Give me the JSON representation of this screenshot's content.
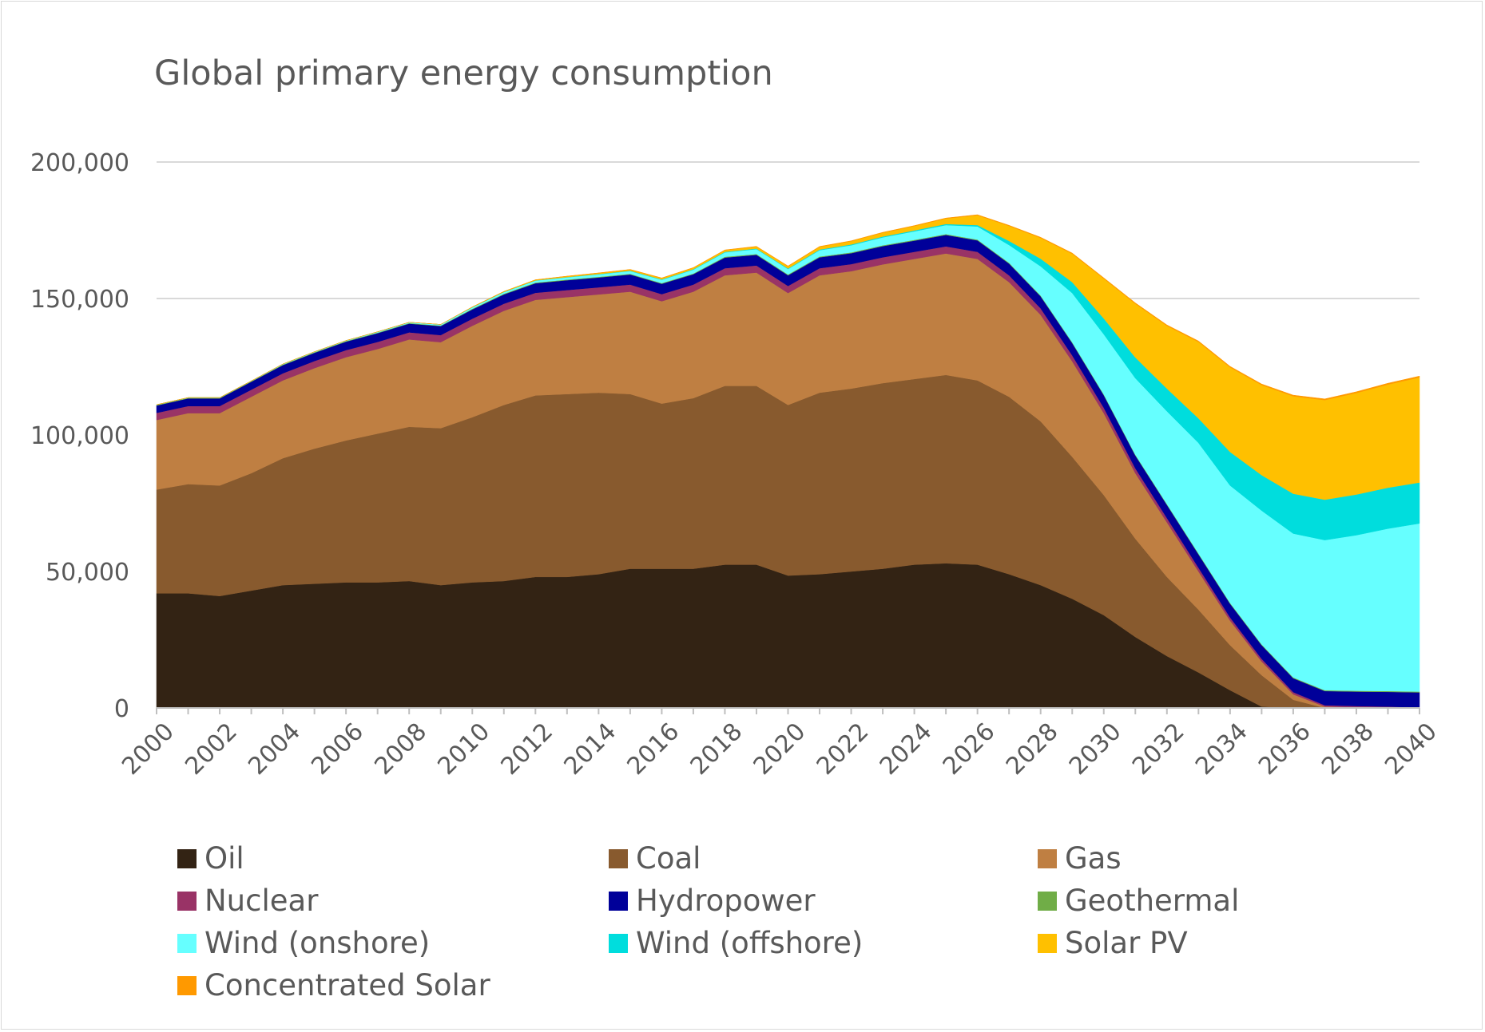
{
  "chart_data": {
    "type": "area",
    "stacked": true,
    "title": "Global primary energy consumption",
    "xlabel": "",
    "ylabel": "",
    "ylim": [
      0,
      200000
    ],
    "yticks": [
      "0",
      "50,000",
      "100,000",
      "150,000",
      "200,000"
    ],
    "ytick_values": [
      0,
      50000,
      100000,
      150000,
      200000
    ],
    "grid": true,
    "legend_position": "bottom",
    "x": [
      2000,
      2001,
      2002,
      2003,
      2004,
      2005,
      2006,
      2007,
      2008,
      2009,
      2010,
      2011,
      2012,
      2013,
      2014,
      2015,
      2016,
      2017,
      2018,
      2019,
      2020,
      2021,
      2022,
      2023,
      2024,
      2025,
      2026,
      2027,
      2028,
      2029,
      2030,
      2031,
      2032,
      2033,
      2034,
      2035,
      2036,
      2037,
      2038,
      2039,
      2040
    ],
    "xtick_labels": [
      "2000",
      "2002",
      "2004",
      "2006",
      "2008",
      "2010",
      "2012",
      "2014",
      "2016",
      "2018",
      "2020",
      "2022",
      "2024",
      "2026",
      "2028",
      "2030",
      "2032",
      "2034",
      "2036",
      "2038",
      "2040"
    ],
    "series": [
      {
        "name": "Oil",
        "color": "#332314",
        "values": [
          42000,
          42000,
          41000,
          43000,
          45000,
          45500,
          46000,
          46000,
          46500,
          45000,
          46000,
          46500,
          48000,
          48000,
          49000,
          51000,
          51000,
          51000,
          52500,
          52500,
          48500,
          49000,
          50000,
          51000,
          52500,
          53000,
          52500,
          49000,
          45000,
          40000,
          34000,
          26000,
          19000,
          13000,
          6500,
          500,
          0,
          0,
          0,
          0,
          0
        ]
      },
      {
        "name": "Coal",
        "color": "#885A2E",
        "values": [
          38000,
          40000,
          40500,
          43000,
          46500,
          49500,
          52000,
          54500,
          56500,
          57500,
          60500,
          64500,
          66500,
          67000,
          66500,
          64000,
          60500,
          62500,
          65500,
          65500,
          62500,
          66500,
          67000,
          68000,
          68000,
          69000,
          67500,
          65000,
          60000,
          52000,
          44000,
          36000,
          29000,
          23000,
          16500,
          11500,
          3000,
          0,
          0,
          0,
          0
        ]
      },
      {
        "name": "Gas",
        "color": "#BF7F42",
        "values": [
          25500,
          26000,
          26500,
          28000,
          28500,
          29500,
          30500,
          31000,
          32000,
          31500,
          33500,
          34500,
          35000,
          35500,
          36000,
          37500,
          37500,
          39000,
          40500,
          41500,
          41000,
          43000,
          43000,
          43500,
          44000,
          44500,
          44500,
          42000,
          39000,
          35000,
          30000,
          24000,
          20000,
          14000,
          9000,
          5000,
          2000,
          500,
          300,
          200,
          0
        ]
      },
      {
        "name": "Nuclear",
        "color": "#993366",
        "values": [
          2600,
          2600,
          2600,
          2600,
          2600,
          2600,
          2600,
          2600,
          2600,
          2600,
          2600,
          2600,
          2600,
          2600,
          2600,
          2600,
          2600,
          2600,
          2600,
          2600,
          2600,
          2600,
          2600,
          2600,
          2600,
          2600,
          2600,
          2500,
          2400,
          2200,
          2000,
          1800,
          1600,
          1400,
          1200,
          1000,
          800,
          500,
          400,
          300,
          200
        ]
      },
      {
        "name": "Hydropower",
        "color": "#000099",
        "values": [
          2700,
          2800,
          2800,
          2900,
          3000,
          3000,
          3100,
          3200,
          3200,
          3300,
          3400,
          3400,
          3500,
          3600,
          3600,
          3700,
          3800,
          3800,
          3900,
          3900,
          3900,
          4000,
          4000,
          4100,
          4100,
          4200,
          4200,
          4300,
          4400,
          4500,
          4600,
          4700,
          4800,
          4900,
          5000,
          5000,
          5100,
          5200,
          5300,
          5400,
          5500
        ]
      },
      {
        "name": "Geothermal",
        "color": "#70AD47",
        "values": [
          200,
          200,
          200,
          200,
          200,
          200,
          200,
          200,
          200,
          200,
          250,
          250,
          250,
          250,
          250,
          250,
          250,
          250,
          300,
          300,
          300,
          300,
          300,
          300,
          300,
          300,
          300,
          300,
          300,
          300,
          300,
          300,
          300,
          300,
          300,
          300,
          300,
          300,
          300,
          300,
          300
        ]
      },
      {
        "name": "Wind (onshore)",
        "color": "#66FFFF",
        "values": [
          100,
          100,
          100,
          100,
          200,
          200,
          200,
          300,
          300,
          400,
          500,
          600,
          700,
          800,
          900,
          1000,
          1200,
          1400,
          1600,
          1800,
          2000,
          2300,
          2600,
          2900,
          3100,
          3300,
          4800,
          6500,
          10700,
          18000,
          22000,
          28000,
          34000,
          40500,
          43000,
          49000,
          52700,
          55000,
          57000,
          59500,
          61600
        ]
      },
      {
        "name": "Wind (offshore)",
        "color": "#00DDDD",
        "values": [
          0,
          0,
          0,
          0,
          0,
          0,
          0,
          0,
          0,
          0,
          50,
          60,
          80,
          100,
          120,
          140,
          160,
          180,
          200,
          200,
          200,
          250,
          300,
          300,
          350,
          400,
          500,
          1500,
          2800,
          4000,
          5800,
          7600,
          8300,
          9000,
          12300,
          13000,
          14600,
          14800,
          14900,
          15000,
          15000
        ]
      },
      {
        "name": "Solar PV",
        "color": "#FFC000",
        "values": [
          0,
          0,
          0,
          0,
          0,
          0,
          0,
          0,
          0,
          0,
          100,
          150,
          200,
          300,
          350,
          400,
          450,
          500,
          600,
          700,
          800,
          1000,
          1200,
          1400,
          1600,
          2000,
          3600,
          5500,
          7600,
          10400,
          14600,
          19700,
          23000,
          28000,
          31000,
          33000,
          35700,
          36500,
          37200,
          37800,
          38500
        ]
      },
      {
        "name": "Concentrated Solar",
        "color": "#FF9900",
        "values": [
          0,
          0,
          0,
          0,
          0,
          0,
          0,
          0,
          0,
          0,
          20,
          30,
          40,
          50,
          60,
          70,
          80,
          90,
          100,
          110,
          120,
          130,
          140,
          150,
          160,
          180,
          200,
          220,
          240,
          260,
          280,
          300,
          320,
          340,
          360,
          380,
          400,
          420,
          440,
          460,
          480
        ]
      }
    ]
  }
}
